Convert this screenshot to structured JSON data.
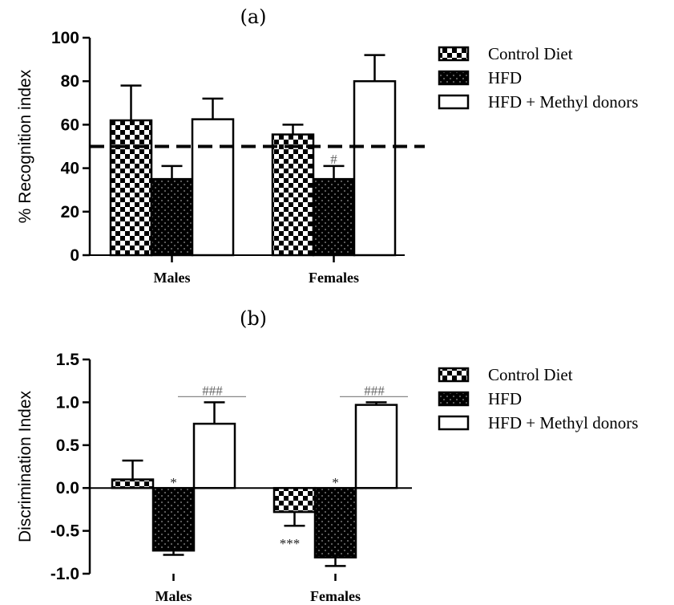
{
  "chart_data": [
    {
      "type": "bar",
      "panel_label": "(a)",
      "ylabel": "% Recognition index",
      "categories": [
        "Males",
        "Females"
      ],
      "ylim": [
        0,
        100
      ],
      "yticks": [
        0,
        20,
        40,
        60,
        80,
        100
      ],
      "ytick_labels": [
        "0",
        "20",
        "40",
        "60",
        "80",
        "100"
      ],
      "reference_line": 50,
      "series": [
        {
          "name": "Control Diet",
          "pattern": "checker",
          "values": [
            62,
            55.5
          ],
          "errors": [
            16,
            4.5
          ]
        },
        {
          "name": "HFD",
          "pattern": "dotted",
          "values": [
            35,
            35
          ],
          "errors": [
            6,
            6
          ]
        },
        {
          "name": "HFD + Methyl donors",
          "pattern": "open",
          "values": [
            62.5,
            80
          ],
          "errors": [
            9.5,
            12
          ]
        }
      ],
      "annotations": [
        {
          "text": "#",
          "category": 1,
          "series": 1,
          "position": "above-error"
        }
      ],
      "legend_position": "right"
    },
    {
      "type": "bar",
      "panel_label": "(b)",
      "ylabel": "Discrimination Index",
      "categories": [
        "Males",
        "Females"
      ],
      "ylim": [
        -1.0,
        1.5
      ],
      "yticks": [
        -1.0,
        -0.5,
        0.0,
        0.5,
        1.0,
        1.5
      ],
      "ytick_labels": [
        "-1.0",
        "-0.5",
        "0.0",
        "0.5",
        "1.0",
        "1.5"
      ],
      "series": [
        {
          "name": "Control Diet",
          "pattern": "checker",
          "values": [
            0.1,
            -0.28
          ],
          "errors": [
            0.22,
            0.16
          ]
        },
        {
          "name": "HFD",
          "pattern": "dotted",
          "values": [
            -0.73,
            -0.81
          ],
          "errors": [
            0.05,
            0.1
          ]
        },
        {
          "name": "HFD + Methyl donors",
          "pattern": "open",
          "values": [
            0.75,
            0.97
          ],
          "errors": [
            0.25,
            0.03
          ]
        }
      ],
      "annotations": [
        {
          "text": "###",
          "category": 0,
          "position": "bracket"
        },
        {
          "text": "###",
          "category": 1,
          "position": "bracket"
        },
        {
          "text": "*",
          "category": 0,
          "series": 1,
          "position": "above-zero"
        },
        {
          "text": "*",
          "category": 1,
          "series": 1,
          "position": "above-zero"
        },
        {
          "text": "***",
          "category": 1,
          "series": 0,
          "position": "below-error"
        }
      ],
      "legend_position": "right"
    }
  ]
}
